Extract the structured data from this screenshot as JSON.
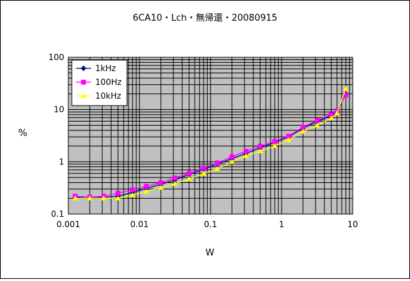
{
  "chart_data": {
    "type": "line",
    "title": "6CA10・Lch・無帰還・20080915",
    "xlabel": "W",
    "ylabel": "%",
    "x_scale": "log",
    "y_scale": "log",
    "xlim": [
      0.001,
      10
    ],
    "ylim": [
      0.1,
      100
    ],
    "x_tick_labels": [
      "0.001",
      "0.01",
      "0.1",
      "1",
      "10"
    ],
    "y_tick_labels": [
      "0.1",
      "1",
      "10",
      "100"
    ],
    "grid": true,
    "plot_background": "#c0c0c0",
    "legend_position": "top-left",
    "series": [
      {
        "name": "1kHz",
        "color": "#000080",
        "marker": "diamond",
        "points": [
          [
            0.00125,
            0.21
          ],
          [
            0.002,
            0.21
          ],
          [
            0.00315,
            0.21
          ],
          [
            0.005,
            0.22
          ],
          [
            0.008,
            0.26
          ],
          [
            0.0125,
            0.31
          ],
          [
            0.02,
            0.37
          ],
          [
            0.0315,
            0.45
          ],
          [
            0.05,
            0.57
          ],
          [
            0.08,
            0.72
          ],
          [
            0.125,
            0.9
          ],
          [
            0.2,
            1.15
          ],
          [
            0.315,
            1.45
          ],
          [
            0.5,
            1.85
          ],
          [
            0.8,
            2.35
          ],
          [
            1.25,
            3.0
          ],
          [
            2.0,
            4.4
          ],
          [
            3.15,
            5.9
          ],
          [
            5.0,
            7.6
          ],
          [
            6.0,
            8.8
          ],
          [
            8.0,
            20.0
          ]
        ]
      },
      {
        "name": "100Hz",
        "color": "#ff00ff",
        "marker": "square",
        "points": [
          [
            0.00125,
            0.22
          ],
          [
            0.002,
            0.21
          ],
          [
            0.00315,
            0.22
          ],
          [
            0.005,
            0.25
          ],
          [
            0.008,
            0.29
          ],
          [
            0.0125,
            0.34
          ],
          [
            0.02,
            0.4
          ],
          [
            0.0315,
            0.49
          ],
          [
            0.05,
            0.6
          ],
          [
            0.08,
            0.76
          ],
          [
            0.125,
            0.95
          ],
          [
            0.2,
            1.25
          ],
          [
            0.315,
            1.6
          ],
          [
            0.5,
            2.0
          ],
          [
            0.8,
            2.45
          ],
          [
            1.25,
            3.1
          ],
          [
            2.0,
            4.6
          ],
          [
            3.15,
            6.2
          ],
          [
            5.0,
            8.0
          ],
          [
            6.0,
            9.5
          ],
          [
            8.0,
            19.0
          ]
        ]
      },
      {
        "name": "10kHz",
        "color": "#ffff00",
        "marker": "triangle",
        "points": [
          [
            0.00125,
            0.2
          ],
          [
            0.002,
            0.2
          ],
          [
            0.00315,
            0.2
          ],
          [
            0.005,
            0.2
          ],
          [
            0.008,
            0.23
          ],
          [
            0.0125,
            0.27
          ],
          [
            0.02,
            0.32
          ],
          [
            0.0315,
            0.38
          ],
          [
            0.05,
            0.47
          ],
          [
            0.08,
            0.59
          ],
          [
            0.125,
            0.74
          ],
          [
            0.2,
            1.0
          ],
          [
            0.315,
            1.3
          ],
          [
            0.5,
            1.6
          ],
          [
            0.8,
            2.0
          ],
          [
            1.25,
            2.6
          ],
          [
            2.0,
            3.8
          ],
          [
            3.15,
            5.0
          ],
          [
            5.0,
            6.8
          ],
          [
            6.0,
            8.5
          ],
          [
            8.0,
            25.0
          ]
        ]
      }
    ]
  }
}
